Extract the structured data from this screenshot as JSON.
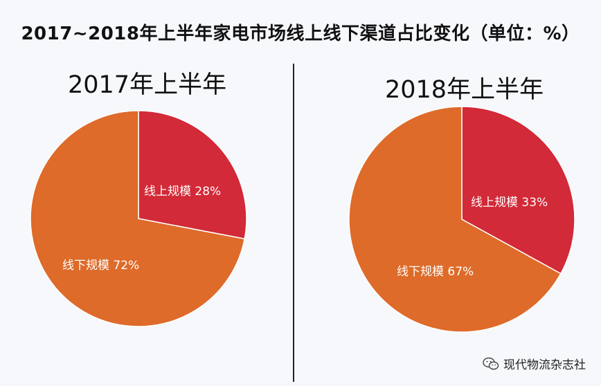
{
  "title": "2017~2018年上半年家电市场线上线下渠道占比变化（单位：%）",
  "watermark": {
    "text": "现代物流杂志社",
    "icon": "wechat-icon"
  },
  "colors": {
    "online": "#d22a38",
    "offline": "#de6b2a"
  },
  "chart_data": [
    {
      "type": "pie",
      "title": "2017年上半年",
      "slices": [
        {
          "label": "线上规模",
          "value": 28,
          "value_label": "28%"
        },
        {
          "label": "线下规模",
          "value": 72,
          "value_label": "72%"
        }
      ]
    },
    {
      "type": "pie",
      "title": "2018年上半年",
      "slices": [
        {
          "label": "线上规模",
          "value": 33,
          "value_label": "33%"
        },
        {
          "label": "线下规模",
          "value": 67,
          "value_label": "67%"
        }
      ]
    }
  ]
}
